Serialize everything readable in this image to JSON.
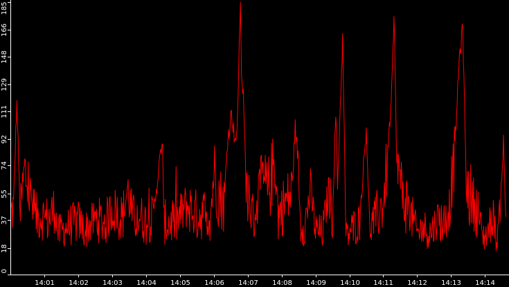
{
  "chart_data": {
    "type": "line",
    "title": "",
    "xlabel": "",
    "ylabel": "",
    "ylim": [
      0,
      185
    ],
    "grid": false,
    "y_ticks": [
      0,
      18,
      37,
      55,
      74,
      92,
      111,
      129,
      148,
      166,
      185
    ],
    "x_ticks": [
      "14:01",
      "14:02",
      "14:03",
      "14:04",
      "14:05",
      "14:06",
      "14:07",
      "14:08",
      "14:09",
      "14:10",
      "14:11",
      "14:12",
      "14:13",
      "14:14"
    ],
    "x_range_minutes": [
      0.0,
      14.62
    ],
    "series": [
      {
        "color": "#ff0000",
        "anchors": [
          [
            0.0,
            40
          ],
          [
            0.08,
            46
          ],
          [
            0.18,
            118
          ],
          [
            0.28,
            40
          ],
          [
            0.4,
            70
          ],
          [
            0.55,
            58
          ],
          [
            0.7,
            38
          ],
          [
            0.9,
            40
          ],
          [
            1.1,
            37
          ],
          [
            1.3,
            45
          ],
          [
            1.4,
            28
          ],
          [
            1.7,
            33
          ],
          [
            2.0,
            36
          ],
          [
            2.2,
            30
          ],
          [
            2.5,
            38
          ],
          [
            2.8,
            35
          ],
          [
            3.0,
            45
          ],
          [
            3.3,
            38
          ],
          [
            3.45,
            58
          ],
          [
            3.6,
            38
          ],
          [
            3.8,
            40
          ],
          [
            4.0,
            35
          ],
          [
            4.2,
            39
          ],
          [
            4.48,
            92
          ],
          [
            4.52,
            36
          ],
          [
            4.6,
            35
          ],
          [
            4.9,
            36
          ],
          [
            5.2,
            47
          ],
          [
            5.5,
            40
          ],
          [
            5.7,
            42
          ],
          [
            5.9,
            40
          ],
          [
            6.0,
            70
          ],
          [
            6.15,
            55
          ],
          [
            6.3,
            48
          ],
          [
            6.4,
            90
          ],
          [
            6.52,
            110
          ],
          [
            6.6,
            95
          ],
          [
            6.68,
            90
          ],
          [
            6.74,
            150
          ],
          [
            6.78,
            185
          ],
          [
            6.82,
            135
          ],
          [
            6.88,
            118
          ],
          [
            6.94,
            65
          ],
          [
            7.0,
            48
          ],
          [
            7.2,
            38
          ],
          [
            7.4,
            65
          ],
          [
            7.6,
            55
          ],
          [
            7.8,
            78
          ],
          [
            7.9,
            40
          ],
          [
            8.0,
            45
          ],
          [
            8.2,
            52
          ],
          [
            8.3,
            55
          ],
          [
            8.4,
            100
          ],
          [
            8.5,
            75
          ],
          [
            8.55,
            35
          ],
          [
            8.7,
            35
          ],
          [
            8.85,
            58
          ],
          [
            9.0,
            30
          ],
          [
            9.2,
            28
          ],
          [
            9.4,
            58
          ],
          [
            9.5,
            40
          ],
          [
            9.6,
            110
          ],
          [
            9.65,
            60
          ],
          [
            9.8,
            160
          ],
          [
            9.9,
            25
          ],
          [
            10.05,
            30
          ],
          [
            10.3,
            36
          ],
          [
            10.5,
            100
          ],
          [
            10.6,
            32
          ],
          [
            10.8,
            40
          ],
          [
            10.9,
            42
          ],
          [
            11.0,
            50
          ],
          [
            11.1,
            70
          ],
          [
            11.25,
            123
          ],
          [
            11.32,
            175
          ],
          [
            11.4,
            72
          ],
          [
            11.5,
            62
          ],
          [
            11.6,
            50
          ],
          [
            11.7,
            48
          ],
          [
            11.9,
            35
          ],
          [
            12.0,
            28
          ],
          [
            12.2,
            32
          ],
          [
            12.4,
            28
          ],
          [
            12.6,
            38
          ],
          [
            12.8,
            35
          ],
          [
            12.95,
            46
          ],
          [
            13.1,
            80
          ],
          [
            13.25,
            148
          ],
          [
            13.35,
            168
          ],
          [
            13.45,
            60
          ],
          [
            13.6,
            52
          ],
          [
            13.8,
            42
          ],
          [
            13.95,
            25
          ],
          [
            14.1,
            30
          ],
          [
            14.25,
            40
          ],
          [
            14.35,
            22
          ],
          [
            14.45,
            45
          ],
          [
            14.55,
            90
          ],
          [
            14.62,
            36
          ]
        ]
      }
    ]
  }
}
